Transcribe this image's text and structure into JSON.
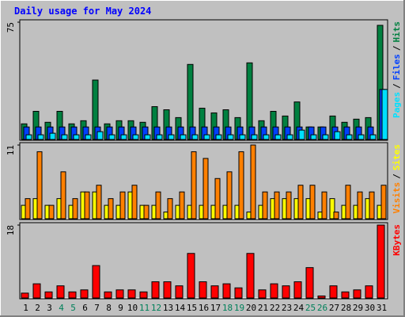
{
  "title": "Daily usage for May 2024",
  "chart_data": [
    {
      "type": "bar",
      "ylim": [
        0,
        75
      ],
      "yticks": [
        75
      ],
      "legend_separator": "/",
      "series": [
        {
          "name": "Hits",
          "color": "#008040",
          "values": [
            10,
            18,
            11,
            18,
            10,
            12,
            38,
            10,
            12,
            12,
            11,
            21,
            19,
            14,
            48,
            20,
            17,
            19,
            14,
            49,
            12,
            18,
            15,
            24,
            8,
            8,
            15,
            11,
            13,
            14,
            73
          ]
        },
        {
          "name": "Files",
          "color": "#0040ff",
          "values": [
            8,
            8,
            8,
            8,
            8,
            8,
            8,
            8,
            8,
            8,
            8,
            8,
            8,
            8,
            8,
            8,
            8,
            8,
            8,
            8,
            8,
            8,
            8,
            8,
            8,
            8,
            8,
            8,
            8,
            8,
            32
          ]
        },
        {
          "name": "Pages",
          "color": "#00e0ff",
          "values": [
            3,
            3,
            4,
            3,
            3,
            3,
            5,
            3,
            3,
            3,
            3,
            3,
            3,
            3,
            3,
            3,
            3,
            3,
            3,
            3,
            3,
            3,
            3,
            6,
            3,
            3,
            5,
            3,
            3,
            3,
            32
          ]
        }
      ]
    },
    {
      "type": "bar",
      "ylim": [
        0,
        11
      ],
      "yticks": [
        11
      ],
      "legend_separator": "/",
      "series": [
        {
          "name": "Sites",
          "color": "#ffff00",
          "values": [
            2,
            3,
            2,
            3,
            2,
            4,
            4,
            2,
            2,
            4,
            2,
            2,
            1,
            2,
            2,
            2,
            2,
            2,
            2,
            1,
            2,
            3,
            3,
            3,
            3,
            1,
            3,
            2,
            2,
            3,
            2
          ]
        },
        {
          "name": "Visits",
          "color": "#ff8000",
          "values": [
            3,
            10,
            2,
            7,
            3,
            4,
            5,
            3,
            4,
            5,
            2,
            4,
            3,
            4,
            10,
            9,
            6,
            7,
            10,
            11,
            4,
            4,
            4,
            5,
            5,
            4,
            1,
            5,
            4,
            4,
            5
          ]
        }
      ]
    },
    {
      "type": "bar",
      "ylim": [
        0,
        18
      ],
      "yticks": [
        18
      ],
      "series": [
        {
          "name": "KBytes",
          "color": "#ff0000",
          "values": [
            1.2,
            3.5,
            1.5,
            3,
            1.5,
            2,
            8,
            1.5,
            2,
            2,
            1.5,
            4,
            4,
            3,
            11,
            4,
            3,
            3.5,
            2.5,
            11,
            2,
            3.5,
            3,
            4,
            7.5,
            0.5,
            3,
            1.5,
            2,
            3,
            18
          ]
        }
      ],
      "categories": [
        "1",
        "2",
        "3",
        "4",
        "5",
        "6",
        "7",
        "8",
        "9",
        "10",
        "11",
        "12",
        "13",
        "14",
        "15",
        "16",
        "17",
        "18",
        "19",
        "20",
        "21",
        "22",
        "23",
        "24",
        "25",
        "26",
        "27",
        "28",
        "29",
        "30",
        "31"
      ],
      "category_colors": [
        "#000000",
        "#000000",
        "#000000",
        "#00805a",
        "#00805a",
        "#000000",
        "#000000",
        "#000000",
        "#000000",
        "#000000",
        "#00805a",
        "#00805a",
        "#000000",
        "#000000",
        "#000000",
        "#000000",
        "#000000",
        "#00805a",
        "#00805a",
        "#000000",
        "#000000",
        "#000000",
        "#000000",
        "#000000",
        "#00805a",
        "#00805a",
        "#000000",
        "#000000",
        "#000000",
        "#000000",
        "#000000"
      ]
    }
  ]
}
